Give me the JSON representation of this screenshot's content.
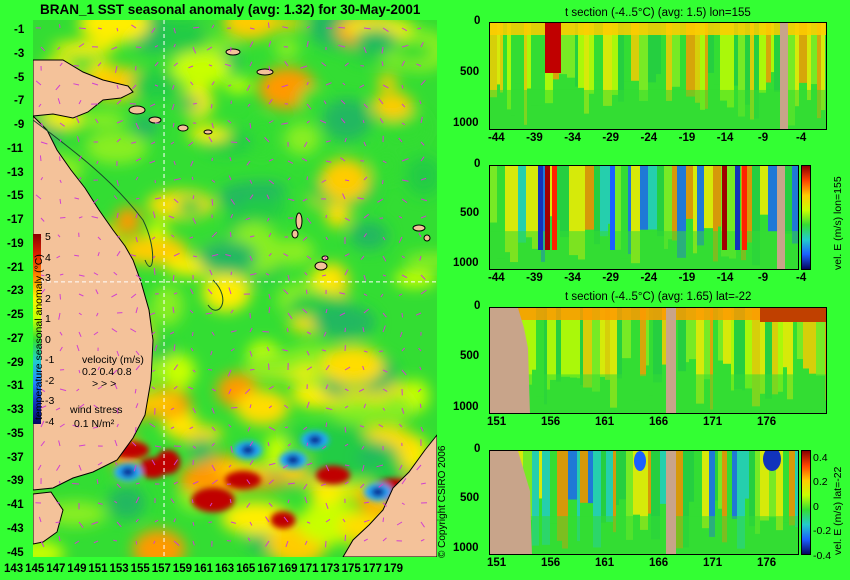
{
  "map": {
    "title": "BRAN_1  SST seasonal anomaly  (avg: 1.32) for 30-May-2001",
    "y_ticks": [
      "-1",
      "-3",
      "-5",
      "-7",
      "-9",
      "-11",
      "-13",
      "-15",
      "-17",
      "-19",
      "-21",
      "-23",
      "-25",
      "-27",
      "-29",
      "-31",
      "-33",
      "-35",
      "-37",
      "-39",
      "-41",
      "-43",
      "-45"
    ],
    "x_ticks": [
      "143",
      "145",
      "147",
      "149",
      "151",
      "153",
      "155",
      "157",
      "159",
      "161",
      "163",
      "165",
      "167",
      "169",
      "171",
      "173",
      "175",
      "177",
      "179"
    ],
    "colorbar_label": "temperature seasonal anomaly (°C)",
    "colorbar_ticks": [
      "5",
      "4",
      "3",
      "2",
      "1",
      "0",
      "-1",
      "-2",
      "-3",
      "-4"
    ],
    "velocity_label": "velocity (m/s)",
    "velocity_scale": "0.2 0.4 0.8",
    "wind_label": "wind stress",
    "wind_scale": "0.1 N/m²",
    "copyright": "© Copyright CSIRO 2006",
    "crosshair": {
      "lon": 155,
      "lat": -22
    },
    "colors": {
      "land": "#f4c29a",
      "anomaly_low": "#1a2fa8",
      "anomaly_mid": "#33dd33",
      "anomaly_high": "#a00000",
      "vectors": "#d040d0"
    }
  },
  "panels": [
    {
      "title": "t section (-4..5°C)  (avg: 1.5) lon=155",
      "y_ticks": [
        "0",
        "500",
        "1000"
      ],
      "x_ticks": [
        "-44",
        "-39",
        "-34",
        "-29",
        "-24",
        "-19",
        "-14",
        "-9",
        "-4"
      ],
      "vlabel": ""
    },
    {
      "title": "",
      "y_ticks": [
        "0",
        "500",
        "1000"
      ],
      "x_ticks": [
        "-44",
        "-39",
        "-34",
        "-29",
        "-24",
        "-19",
        "-14",
        "-9",
        "-4"
      ],
      "vlabel": "vel. E (m/s) lon=155"
    },
    {
      "title": "t section (-4..5°C)  (avg: 1.65) lat=-22",
      "y_ticks": [
        "0",
        "500",
        "1000"
      ],
      "x_ticks": [
        "151",
        "156",
        "161",
        "166",
        "171",
        "176"
      ],
      "vlabel": ""
    },
    {
      "title": "",
      "y_ticks": [
        "0",
        "500",
        "1000"
      ],
      "x_ticks": [
        "151",
        "156",
        "161",
        "166",
        "171",
        "176"
      ],
      "vlabel": "vel. E (m/s) lat=-22",
      "colorbar_ticks": [
        "0.4",
        "0.2",
        "0",
        "-0.2",
        "-0.4"
      ]
    }
  ],
  "chart_data": [
    {
      "type": "heatmap",
      "title": "BRAN_1  SST seasonal anomaly  (avg: 1.32) for 30-May-2001",
      "x_range": [
        143,
        179
      ],
      "y_range": [
        -45,
        -1
      ],
      "color_range": [
        -4,
        5
      ],
      "colorbar_label": "temperature seasonal anomaly (°C)",
      "average": 1.32
    },
    {
      "type": "heatmap",
      "title": "t section (-4..5°C)  (avg: 1.5) lon=155",
      "x_range": [
        -45,
        0
      ],
      "y_range": [
        1050,
        0
      ],
      "color_range": [
        -4,
        5
      ],
      "average": 1.5
    },
    {
      "type": "heatmap",
      "title": "",
      "x_range": [
        -45,
        0
      ],
      "y_range": [
        1050,
        0
      ],
      "color_range": [
        -0.4,
        0.4
      ],
      "colorbar_label": "vel. E (m/s) lon=155"
    },
    {
      "type": "heatmap",
      "title": "t section (-4..5°C)  (avg: 1.65) lat=-22",
      "x_range": [
        150,
        180
      ],
      "y_range": [
        1050,
        0
      ],
      "color_range": [
        -4,
        5
      ],
      "average": 1.65
    },
    {
      "type": "heatmap",
      "title": "",
      "x_range": [
        150,
        180
      ],
      "y_range": [
        1050,
        0
      ],
      "color_range": [
        -0.4,
        0.4
      ],
      "colorbar_label": "vel. E (m/s) lat=-22"
    }
  ]
}
